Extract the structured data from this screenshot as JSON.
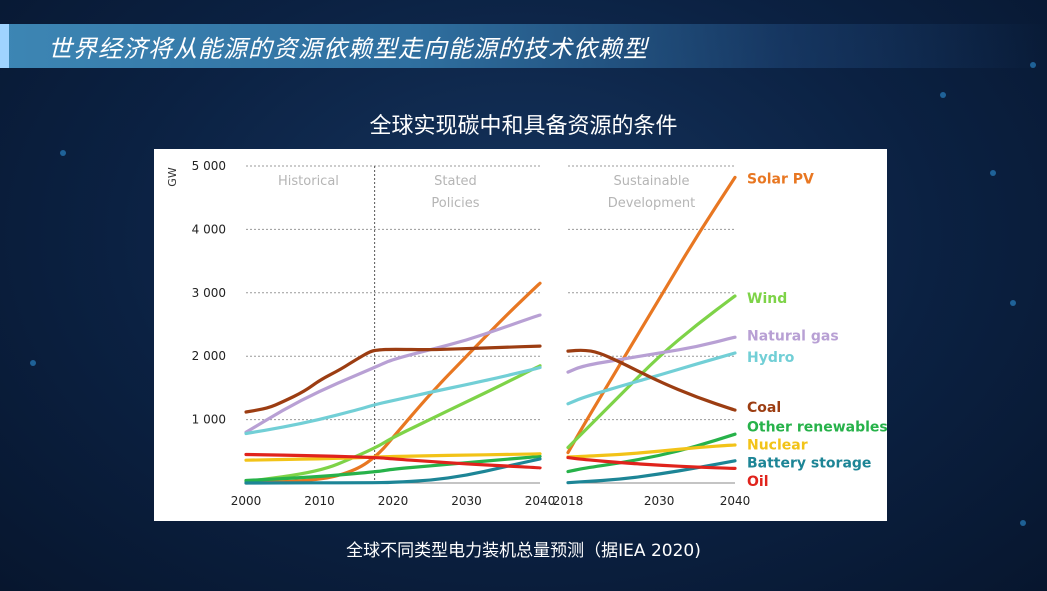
{
  "banner": {
    "title": "世界经济将从能源的资源依赖型走向能源的技术依赖型"
  },
  "chart_title": "全球实现碳中和具备资源的条件",
  "caption": "全球不同类型电力装机总量预测（据IEA 2020)",
  "chart_data": {
    "type": "line",
    "y_unit": "GW",
    "ylim": [
      0,
      5000
    ],
    "yticks": [
      1000,
      2000,
      3000,
      4000,
      5000
    ],
    "ytick_labels": [
      "1 000",
      "2 000",
      "3 000",
      "4 000",
      "5 000"
    ],
    "grid": true,
    "legend_placement": "right",
    "panels": [
      {
        "name": "left",
        "xlim": [
          2000,
          2040
        ],
        "xticks": [
          2000,
          2010,
          2020,
          2030,
          2040
        ],
        "sections": [
          {
            "label": "Historical",
            "x_center": 2008.5
          },
          {
            "label": "Stated\nPolicies",
            "x_center": 2028.5
          }
        ],
        "divider_x": 2017.5,
        "series": [
          {
            "name": "Solar PV",
            "x": [
              2000,
              2010,
              2015,
              2018,
              2020,
              2025,
              2030,
              2035,
              2040
            ],
            "y": [
              0,
              40,
              200,
              450,
              720,
              1400,
              2000,
              2600,
              3150
            ]
          },
          {
            "name": "Wind",
            "x": [
              2000,
              2010,
              2015,
              2018,
              2020,
              2025,
              2030,
              2035,
              2040
            ],
            "y": [
              20,
              180,
              420,
              580,
              720,
              1000,
              1280,
              1560,
              1850
            ]
          },
          {
            "name": "Natural gas",
            "x": [
              2000,
              2005,
              2010,
              2015,
              2018,
              2020,
              2025,
              2030,
              2035,
              2040
            ],
            "y": [
              800,
              1150,
              1450,
              1700,
              1850,
              1950,
              2100,
              2250,
              2450,
              2650
            ]
          },
          {
            "name": "Hydro",
            "x": [
              2000,
              2005,
              2010,
              2015,
              2018,
              2020,
              2025,
              2030,
              2035,
              2040
            ],
            "y": [
              780,
              880,
              1000,
              1150,
              1250,
              1300,
              1430,
              1550,
              1680,
              1820
            ]
          },
          {
            "name": "Coal",
            "x": [
              2000,
              2003,
              2005,
              2008,
              2010,
              2013,
              2015,
              2017,
              2018,
              2020,
              2025,
              2030,
              2035,
              2040
            ],
            "y": [
              1120,
              1180,
              1280,
              1450,
              1620,
              1800,
              1950,
              2080,
              2100,
              2110,
              2100,
              2120,
              2140,
              2160
            ]
          },
          {
            "name": "Other renewables",
            "x": [
              2000,
              2010,
              2018,
              2020,
              2025,
              2030,
              2035,
              2040
            ],
            "y": [
              40,
              100,
              180,
              220,
              270,
              320,
              370,
              420
            ]
          },
          {
            "name": "Nuclear",
            "x": [
              2000,
              2010,
              2018,
              2020,
              2025,
              2030,
              2035,
              2040
            ],
            "y": [
              360,
              380,
              410,
              420,
              430,
              440,
              450,
              460
            ]
          },
          {
            "name": "Battery storage",
            "x": [
              2000,
              2018,
              2020,
              2025,
              2030,
              2035,
              2040
            ],
            "y": [
              0,
              5,
              10,
              40,
              120,
              250,
              380
            ]
          },
          {
            "name": "Oil",
            "x": [
              2000,
              2010,
              2018,
              2020,
              2025,
              2030,
              2035,
              2040
            ],
            "y": [
              450,
              430,
              400,
              380,
              340,
              300,
              270,
              240
            ]
          }
        ]
      },
      {
        "name": "right",
        "xlim": [
          2018,
          2040
        ],
        "xticks": [
          2018,
          2030,
          2040
        ],
        "sections": [
          {
            "label": "Sustainable\nDevelopment",
            "x_center": 2029
          }
        ],
        "series": [
          {
            "name": "Solar PV",
            "x": [
              2018,
              2020,
              2025,
              2030,
              2035,
              2040
            ],
            "y": [
              480,
              900,
              1900,
              2900,
              3900,
              4820
            ]
          },
          {
            "name": "Wind",
            "x": [
              2018,
              2020,
              2025,
              2030,
              2035,
              2040
            ],
            "y": [
              560,
              800,
              1400,
              2000,
              2500,
              2950
            ]
          },
          {
            "name": "Natural gas",
            "x": [
              2018,
              2020,
              2025,
              2030,
              2035,
              2040
            ],
            "y": [
              1750,
              1850,
              1950,
              2050,
              2150,
              2300
            ]
          },
          {
            "name": "Hydro",
            "x": [
              2018,
              2020,
              2025,
              2030,
              2035,
              2040
            ],
            "y": [
              1250,
              1350,
              1530,
              1700,
              1880,
              2050
            ]
          },
          {
            "name": "Coal",
            "x": [
              2018,
              2020,
              2022,
              2025,
              2030,
              2035,
              2040
            ],
            "y": [
              2080,
              2100,
              2060,
              1900,
              1600,
              1350,
              1150
            ]
          },
          {
            "name": "Other renewables",
            "x": [
              2018,
              2020,
              2025,
              2030,
              2035,
              2040
            ],
            "y": [
              180,
              230,
              320,
              430,
              580,
              770
            ]
          },
          {
            "name": "Nuclear",
            "x": [
              2018,
              2020,
              2025,
              2030,
              2035,
              2040
            ],
            "y": [
              410,
              420,
              450,
              500,
              560,
              600
            ]
          },
          {
            "name": "Battery storage",
            "x": [
              2018,
              2020,
              2025,
              2030,
              2035,
              2040
            ],
            "y": [
              5,
              20,
              60,
              140,
              240,
              350
            ]
          },
          {
            "name": "Oil",
            "x": [
              2018,
              2020,
              2025,
              2030,
              2035,
              2040
            ],
            "y": [
              400,
              370,
              320,
              280,
              250,
              230
            ]
          }
        ]
      }
    ],
    "legend": [
      {
        "name": "Solar PV",
        "color": "#e87722",
        "label_y": 4800
      },
      {
        "name": "Wind",
        "color": "#7ed348",
        "label_y": 2920
      },
      {
        "name": "Natural gas",
        "color": "#b8a0d4",
        "label_y": 2330
      },
      {
        "name": "Hydro",
        "color": "#72cfd6",
        "label_y": 1990
      },
      {
        "name": "Coal",
        "color": "#9c3d12",
        "label_y": 1200
      },
      {
        "name": "Other renewables",
        "color": "#27b24a",
        "label_y": 890
      },
      {
        "name": "Nuclear",
        "color": "#f2c318",
        "label_y": 610
      },
      {
        "name": "Battery storage",
        "color": "#1d8596",
        "label_y": 320
      },
      {
        "name": "Oil",
        "color": "#e0231c",
        "label_y": 30
      }
    ]
  }
}
